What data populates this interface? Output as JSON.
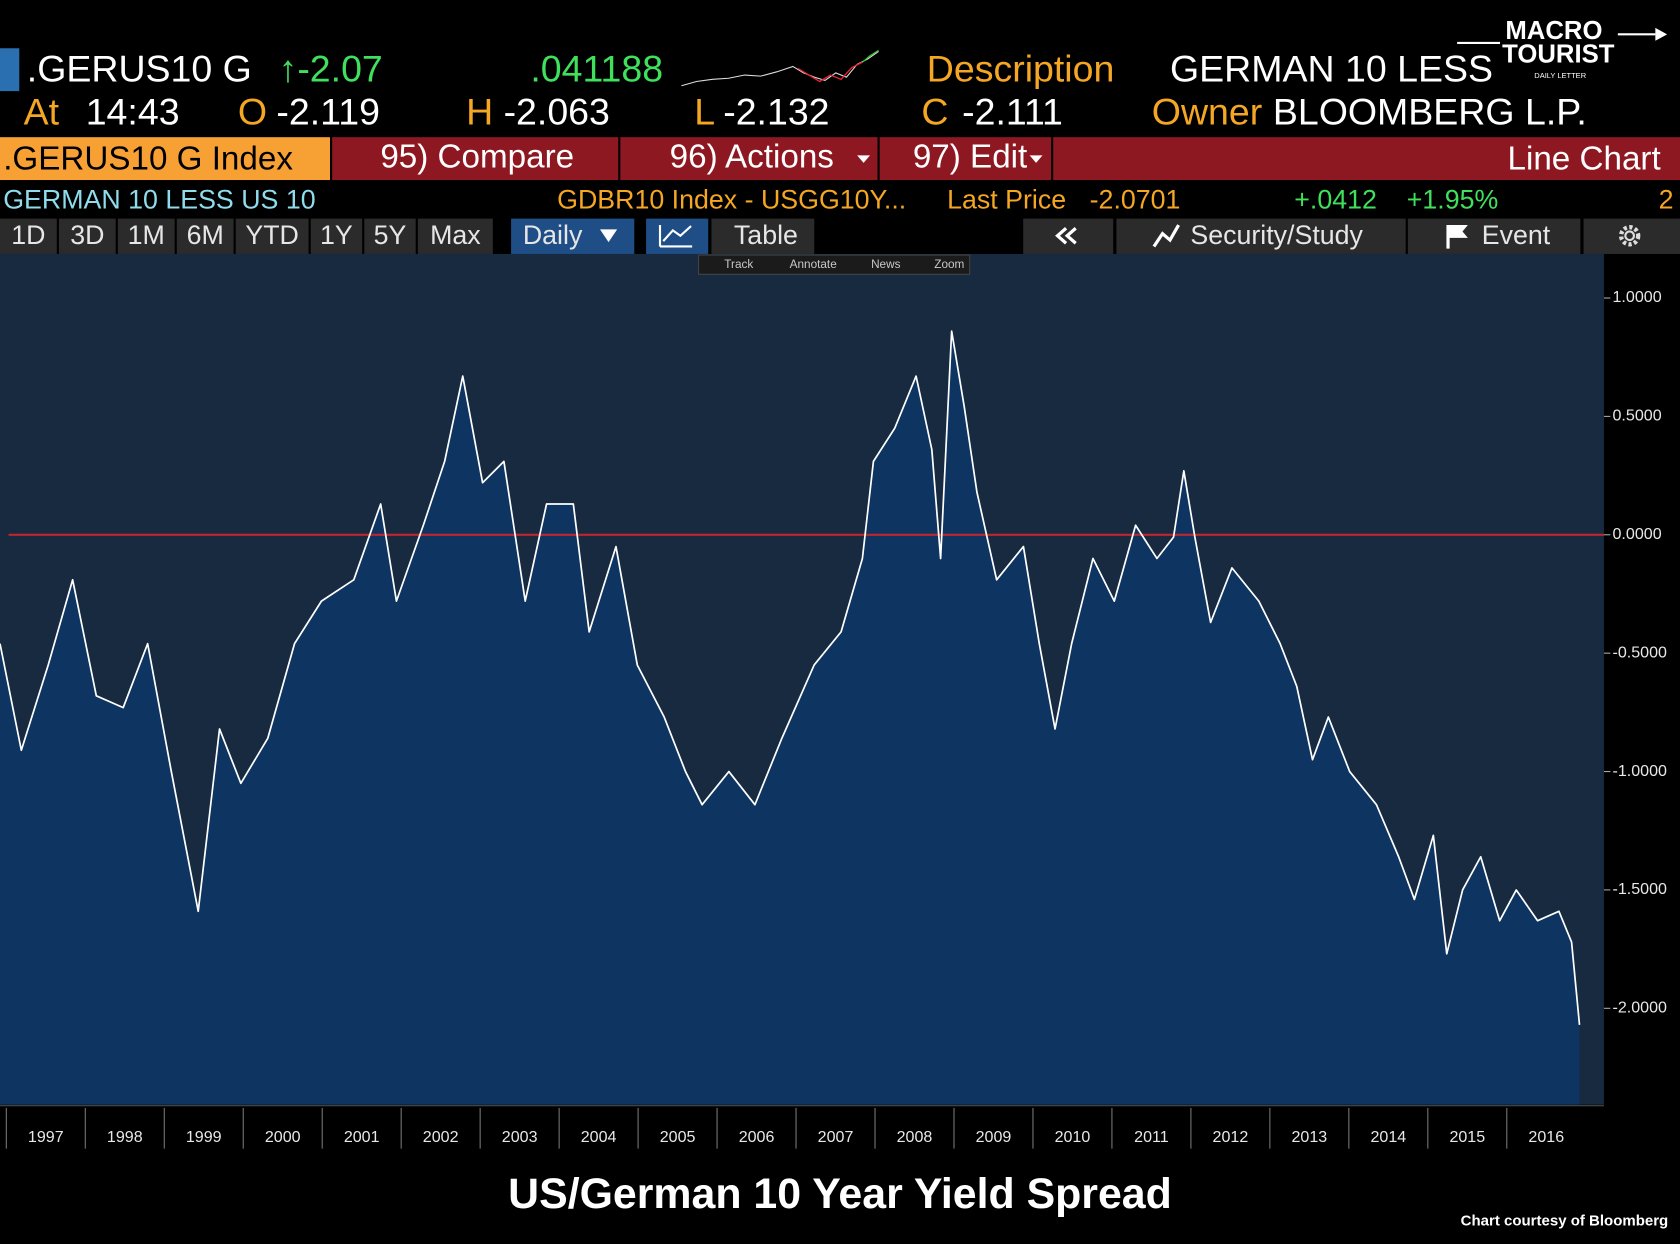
{
  "header": {
    "ticker": ".GERUS10 G",
    "last": "↑-2.07",
    "change": ".041188",
    "description_label": "Description",
    "description": "GERMAN 10 LESS US 10",
    "at_label": "At",
    "time": "14:43",
    "open_label": "O",
    "open": "-2.119",
    "high_label": "H",
    "high": "-2.063",
    "low_label": "L",
    "low": "-2.132",
    "close_label": "C",
    "close": "-2.111",
    "owner_label": "Owner",
    "owner": "BLOOMBERG L.P."
  },
  "logo": {
    "line1": "MACRO",
    "line2": "TOURIST",
    "tagline": "DAILY LETTER"
  },
  "menu": {
    "security": ".GERUS10 G Index",
    "compare": "95) Compare",
    "actions": "96) Actions",
    "edit": "97) Edit",
    "view": "Line Chart"
  },
  "info": {
    "name": "GERMAN 10 LESS US 10",
    "expression": "GDBR10 Index - USGG10Y...",
    "last_price_label": "Last Price",
    "last_price": "-2.0701",
    "net_change": "+.0412",
    "pct_change": "+1.95%",
    "page": "2"
  },
  "ranges": [
    "1D",
    "3D",
    "1M",
    "6M",
    "YTD",
    "1Y",
    "5Y",
    "Max"
  ],
  "frequency": "Daily",
  "table": "Table",
  "security_study": "Security/Study",
  "event": "Event",
  "chart_tools": [
    "Track",
    "Annotate",
    "News",
    "Zoom"
  ],
  "chart_data": {
    "type": "line",
    "title": "US/German 10 Year Yield Spread",
    "source": "Chart courtesy of Bloomberg",
    "x": [
      1996.92,
      1997.19,
      1997.53,
      1997.84,
      1998.14,
      1998.48,
      1998.79,
      1999.09,
      1999.43,
      1999.7,
      1999.97,
      2000.31,
      2000.65,
      2000.99,
      2001.4,
      2001.74,
      2001.94,
      2002.28,
      2002.55,
      2002.78,
      2003.03,
      2003.3,
      2003.57,
      2003.84,
      2004.18,
      2004.38,
      2004.72,
      2004.99,
      2005.33,
      2005.6,
      2005.81,
      2006.15,
      2006.48,
      2006.82,
      2007.23,
      2007.57,
      2007.84,
      2007.98,
      2008.25,
      2008.52,
      2008.72,
      2008.83,
      2008.97,
      2009.13,
      2009.29,
      2009.54,
      2009.88,
      2010.08,
      2010.28,
      2010.49,
      2010.76,
      2011.03,
      2011.3,
      2011.57,
      2011.78,
      2011.91,
      2012.05,
      2012.25,
      2012.52,
      2012.86,
      2013.13,
      2013.34,
      2013.54,
      2013.74,
      2014.01,
      2014.35,
      2014.63,
      2014.83,
      2015.07,
      2015.24,
      2015.44,
      2015.67,
      2015.91,
      2016.12,
      2016.39,
      2016.66,
      2016.82,
      2016.92
    ],
    "values": [
      -0.46,
      -0.91,
      -0.55,
      -0.19,
      -0.68,
      -0.73,
      -0.46,
      -1.0,
      -1.59,
      -0.82,
      -1.05,
      -0.86,
      -0.46,
      -0.28,
      -0.19,
      0.13,
      -0.28,
      0.04,
      0.31,
      0.67,
      0.22,
      0.31,
      -0.28,
      0.13,
      0.13,
      -0.41,
      -0.05,
      -0.55,
      -0.77,
      -1.0,
      -1.14,
      -1.0,
      -1.14,
      -0.86,
      -0.55,
      -0.41,
      -0.1,
      0.31,
      0.45,
      0.67,
      0.36,
      -0.1,
      0.86,
      0.54,
      0.18,
      -0.19,
      -0.05,
      -0.46,
      -0.82,
      -0.46,
      -0.1,
      -0.28,
      0.04,
      -0.1,
      -0.01,
      0.27,
      -0.01,
      -0.37,
      -0.14,
      -0.28,
      -0.46,
      -0.64,
      -0.95,
      -0.77,
      -1.0,
      -1.14,
      -1.36,
      -1.54,
      -1.27,
      -1.77,
      -1.5,
      -1.36,
      -1.63,
      -1.5,
      -1.63,
      -1.59,
      -1.72,
      -2.07
    ],
    "color": "#ffffff",
    "fill": "#0e3461",
    "background": "#172a40",
    "xlim": [
      1996.92,
      2017.23
    ],
    "ylim": [
      -2.407,
      1.186
    ],
    "xticks": [
      1997,
      1998,
      1999,
      2000,
      2001,
      2002,
      2003,
      2004,
      2005,
      2006,
      2007,
      2008,
      2009,
      2010,
      2011,
      2012,
      2013,
      2014,
      2015,
      2016
    ],
    "yticks": [
      {
        "value": 1,
        "label": "1.0000"
      },
      {
        "value": 0.5,
        "label": "0.5000"
      },
      {
        "value": 0,
        "label": "0.0000"
      },
      {
        "value": -0.5,
        "label": "-0.5000"
      },
      {
        "value": -1,
        "label": "-1.0000"
      },
      {
        "value": -1.5,
        "label": "-1.5000"
      },
      {
        "value": -2,
        "label": "-2.0000"
      }
    ],
    "reference_line": 0,
    "reference_color": "#c0262d"
  }
}
